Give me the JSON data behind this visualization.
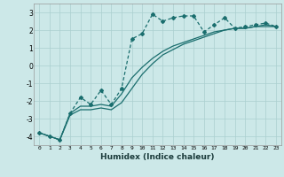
{
  "xlabel": "Humidex (Indice chaleur)",
  "ylabel": "",
  "background_color": "#cce8e8",
  "grid_color": "#aacfcf",
  "line_color": "#1a6e6e",
  "xlim": [
    -0.5,
    23.5
  ],
  "ylim": [
    -4.5,
    3.5
  ],
  "yticks": [
    -4,
    -3,
    -2,
    -1,
    0,
    1,
    2,
    3
  ],
  "xticks": [
    0,
    1,
    2,
    3,
    4,
    5,
    6,
    7,
    8,
    9,
    10,
    11,
    12,
    13,
    14,
    15,
    16,
    17,
    18,
    19,
    20,
    21,
    22,
    23
  ],
  "line1_x": [
    0,
    1,
    2,
    3,
    4,
    5,
    6,
    7,
    8,
    9,
    10,
    11,
    12,
    13,
    14,
    15,
    16,
    17,
    18,
    19,
    20,
    21,
    22,
    23
  ],
  "line1_y": [
    -3.8,
    -4.0,
    -4.2,
    -2.7,
    -1.8,
    -2.2,
    -1.4,
    -2.2,
    -1.3,
    1.5,
    1.8,
    2.9,
    2.5,
    2.7,
    2.8,
    2.8,
    1.9,
    2.3,
    2.7,
    2.1,
    2.2,
    2.3,
    2.4,
    2.2
  ],
  "line2_x": [
    0,
    1,
    2,
    3,
    4,
    5,
    6,
    7,
    8,
    9,
    10,
    11,
    12,
    13,
    14,
    15,
    16,
    17,
    18,
    19,
    20,
    21,
    22,
    23
  ],
  "line2_y": [
    -3.8,
    -4.0,
    -4.2,
    -2.8,
    -2.5,
    -2.5,
    -2.4,
    -2.5,
    -2.1,
    -1.3,
    -0.5,
    0.1,
    0.6,
    0.9,
    1.2,
    1.4,
    1.6,
    1.8,
    2.0,
    2.1,
    2.1,
    2.2,
    2.2,
    2.2
  ],
  "line3_x": [
    0,
    1,
    2,
    3,
    4,
    5,
    6,
    7,
    8,
    9,
    10,
    11,
    12,
    13,
    14,
    15,
    16,
    17,
    18,
    19,
    20,
    21,
    22,
    23
  ],
  "line3_y": [
    -3.8,
    -4.0,
    -4.2,
    -2.7,
    -2.3,
    -2.3,
    -2.2,
    -2.3,
    -1.6,
    -0.7,
    -0.1,
    0.4,
    0.8,
    1.1,
    1.3,
    1.5,
    1.7,
    1.9,
    2.0,
    2.1,
    2.1,
    2.2,
    2.3,
    2.2
  ]
}
